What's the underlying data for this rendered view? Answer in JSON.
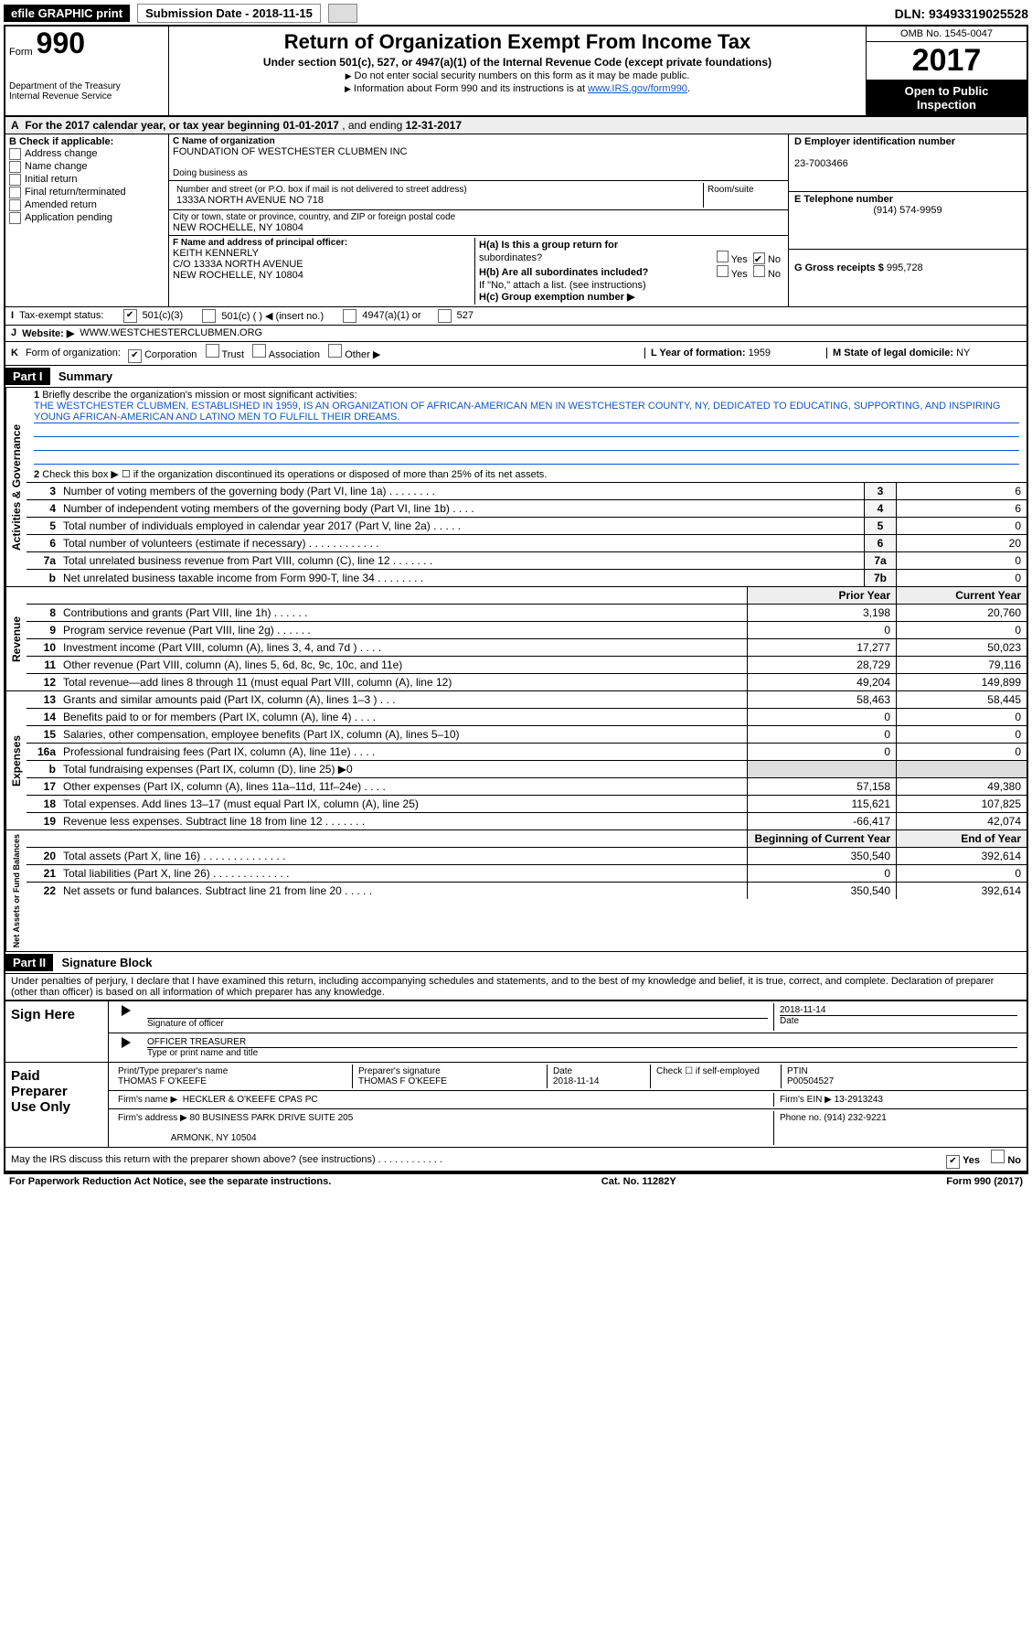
{
  "topbar": {
    "efile": "efile GRAPHIC print",
    "submission_label": "Submission Date - 2018-11-15",
    "dln": "DLN: 93493319025528"
  },
  "header": {
    "form_label": "Form",
    "form_number": "990",
    "dept1": "Department of the Treasury",
    "dept2": "Internal Revenue Service",
    "title": "Return of Organization Exempt From Income Tax",
    "subtitle": "Under section 501(c), 527, or 4947(a)(1) of the Internal Revenue Code (except private foundations)",
    "instr1": "Do not enter social security numbers on this form as it may be made public.",
    "instr2_pre": "Information about Form 990 and its instructions is at ",
    "instr2_link": "www.IRS.gov/form990",
    "omb": "OMB No. 1545-0047",
    "year": "2017",
    "open1": "Open to Public",
    "open2": "Inspection"
  },
  "rowA": {
    "text_pre": "For the 2017 calendar year, or tax year beginning ",
    "begin": "01-01-2017",
    "mid": " , and ending ",
    "end": "12-31-2017",
    "label": "A"
  },
  "checkB": {
    "label": "B Check if applicable:",
    "items": [
      "Address change",
      "Name change",
      "Initial return",
      "Final return/terminated",
      "Amended return",
      "Application pending"
    ]
  },
  "orgC": {
    "name_label": "C Name of organization",
    "name": "FOUNDATION OF WESTCHESTER CLUBMEN INC",
    "dba_label": "Doing business as",
    "addr_label": "Number and street (or P.O. box if mail is not delivered to street address)",
    "room_label": "Room/suite",
    "addr": "1333A NORTH AVENUE NO 718",
    "city_label": "City or town, state or province, country, and ZIP or foreign postal code",
    "city": "NEW ROCHELLE, NY  10804",
    "f_label": "F Name and address of principal officer:",
    "f_name": "KEITH KENNERLY",
    "f_addr1": "C/O 1333A NORTH AVENUE",
    "f_addr2": "NEW ROCHELLE, NY  10804"
  },
  "colD": {
    "ein_label": "D Employer identification number",
    "ein": "23-7003466",
    "phone_label": "E Telephone number",
    "phone": "(914) 574-9959",
    "gross_label": "G Gross receipts $ ",
    "gross": "995,728"
  },
  "colH": {
    "ha_label": "H(a) Is this a group return for",
    "ha_sub": "subordinates?",
    "hb_label": "H(b) Are all subordinates included?",
    "hb_note": "If \"No,\" attach a list. (see instructions)",
    "hc_label": "H(c) Group exemption number ▶",
    "yes": "Yes",
    "no": "No"
  },
  "lineI": {
    "label": "I",
    "text": "Tax-exempt status:",
    "opt1": "501(c)(3)",
    "opt2": "501(c) (  ) ◀ (insert no.)",
    "opt3": "4947(a)(1) or",
    "opt4": "527"
  },
  "lineJ": {
    "label": "J",
    "text": "Website: ▶",
    "value": "WWW.WESTCHESTERCLUBMEN.ORG"
  },
  "lineK": {
    "label": "K",
    "text": "Form of organization:",
    "opts": [
      "Corporation",
      "Trust",
      "Association",
      "Other ▶"
    ],
    "l_label": "L Year of formation: ",
    "l_val": "1959",
    "m_label": "M State of legal domicile: ",
    "m_val": "NY"
  },
  "part1": {
    "header": "Part I",
    "title": "Summary"
  },
  "summary": {
    "vtab_gov": "Activities & Governance",
    "vtab_rev": "Revenue",
    "vtab_exp": "Expenses",
    "vtab_net": "Net Assets or Fund Balances",
    "line1_num": "1",
    "line1": "Briefly describe the organization's mission or most significant activities:",
    "mission": "THE WESTCHESTER CLUBMEN, ESTABLISHED IN 1959, IS AN ORGANIZATION OF AFRICAN-AMERICAN MEN IN WESTCHESTER COUNTY, NY, DEDICATED TO EDUCATING, SUPPORTING, AND INSPIRING YOUNG AFRICAN-AMERICAN AND LATINO MEN TO FULFILL THEIR DREAMS.",
    "line2_num": "2",
    "line2": "Check this box ▶ ☐ if the organization discontinued its operations or disposed of more than 25% of its net assets.",
    "rows_gov": [
      {
        "num": "3",
        "desc": "Number of voting members of the governing body (Part VI, line 1a)  .   .   .   .   .   .   .   .",
        "box": "3",
        "val": "6"
      },
      {
        "num": "4",
        "desc": "Number of independent voting members of the governing body (Part VI, line 1b)  .   .   .   .",
        "box": "4",
        "val": "6"
      },
      {
        "num": "5",
        "desc": "Total number of individuals employed in calendar year 2017 (Part V, line 2a)  .   .   .   .   .",
        "box": "5",
        "val": "0"
      },
      {
        "num": "6",
        "desc": "Total number of volunteers (estimate if necessary)  .   .   .   .   .   .   .   .   .   .   .   .",
        "box": "6",
        "val": "20"
      },
      {
        "num": "7a",
        "desc": "Total unrelated business revenue from Part VIII, column (C), line 12  .   .   .   .   .   .   .",
        "box": "7a",
        "val": "0"
      },
      {
        "num": "b",
        "desc": "Net unrelated business taxable income from Form 990-T, line 34  .   .   .   .   .   .   .   .",
        "box": "7b",
        "val": "0"
      }
    ],
    "prior_year": "Prior Year",
    "current_year": "Current Year",
    "rows_rev": [
      {
        "num": "8",
        "desc": "Contributions and grants (Part VIII, line 1h)  .   .   .   .   .   .",
        "py": "3,198",
        "cy": "20,760"
      },
      {
        "num": "9",
        "desc": "Program service revenue (Part VIII, line 2g)  .   .   .   .   .   .",
        "py": "0",
        "cy": "0"
      },
      {
        "num": "10",
        "desc": "Investment income (Part VIII, column (A), lines 3, 4, and 7d )  .   .   .   .",
        "py": "17,277",
        "cy": "50,023"
      },
      {
        "num": "11",
        "desc": "Other revenue (Part VIII, column (A), lines 5, 6d, 8c, 9c, 10c, and 11e)",
        "py": "28,729",
        "cy": "79,116"
      },
      {
        "num": "12",
        "desc": "Total revenue—add lines 8 through 11 (must equal Part VIII, column (A), line 12)",
        "py": "49,204",
        "cy": "149,899"
      }
    ],
    "rows_exp": [
      {
        "num": "13",
        "desc": "Grants and similar amounts paid (Part IX, column (A), lines 1–3 )  .   .   .",
        "py": "58,463",
        "cy": "58,445"
      },
      {
        "num": "14",
        "desc": "Benefits paid to or for members (Part IX, column (A), line 4)  .   .   .   .",
        "py": "0",
        "cy": "0"
      },
      {
        "num": "15",
        "desc": "Salaries, other compensation, employee benefits (Part IX, column (A), lines 5–10)",
        "py": "0",
        "cy": "0"
      },
      {
        "num": "16a",
        "desc": "Professional fundraising fees (Part IX, column (A), line 11e)  .   .   .   .",
        "py": "0",
        "cy": "0"
      },
      {
        "num": "b",
        "desc": "Total fundraising expenses (Part IX, column (D), line 25) ▶0",
        "py": "",
        "cy": "",
        "shade": true
      },
      {
        "num": "17",
        "desc": "Other expenses (Part IX, column (A), lines 11a–11d, 11f–24e)  .   .   .   .",
        "py": "57,158",
        "cy": "49,380"
      },
      {
        "num": "18",
        "desc": "Total expenses. Add lines 13–17 (must equal Part IX, column (A), line 25)",
        "py": "115,621",
        "cy": "107,825"
      },
      {
        "num": "19",
        "desc": "Revenue less expenses. Subtract line 18 from line 12  .   .   .   .   .   .   .",
        "py": "-66,417",
        "cy": "42,074"
      }
    ],
    "boy": "Beginning of Current Year",
    "eoy": "End of Year",
    "rows_net": [
      {
        "num": "20",
        "desc": "Total assets (Part X, line 16)  .   .   .   .   .   .   .   .   .   .   .   .   .   .",
        "py": "350,540",
        "cy": "392,614"
      },
      {
        "num": "21",
        "desc": "Total liabilities (Part X, line 26)  .   .   .   .   .   .   .   .   .   .   .   .   .",
        "py": "0",
        "cy": "0"
      },
      {
        "num": "22",
        "desc": "Net assets or fund balances. Subtract line 21 from line 20  .   .   .   .   .",
        "py": "350,540",
        "cy": "392,614"
      }
    ]
  },
  "part2": {
    "header": "Part II",
    "title": "Signature Block",
    "penalty": "Under penalties of perjury, I declare that I have examined this return, including accompanying schedules and statements, and to the best of my knowledge and belief, it is true, correct, and complete. Declaration of preparer (other than officer) is based on all information of which preparer has any knowledge."
  },
  "sign": {
    "left": "Sign Here",
    "sig_label": "Signature of officer",
    "date_label": "Date",
    "date": "2018-11-14",
    "title_line": "OFFICER TREASURER",
    "title_label": "Type or print name and title"
  },
  "paid": {
    "left1": "Paid",
    "left2": "Preparer",
    "left3": "Use Only",
    "r1c1_label": "Print/Type preparer's name",
    "r1c1": "THOMAS F O'KEEFE",
    "r1c2_label": "Preparer's signature",
    "r1c2": "THOMAS F O'KEEFE",
    "r1c3_label": "Date",
    "r1c3": "2018-11-14",
    "r1c4_label": "Check ☐ if self-employed",
    "r1c5_label": "PTIN",
    "r1c5": "P00504527",
    "r2_label": "Firm's name    ▶",
    "r2": "HECKLER & O'KEEFE CPAS PC",
    "r2b_label": "Firm's EIN ▶",
    "r2b": "13-2913243",
    "r3_label": "Firm's address ▶",
    "r3a": "80 BUSINESS PARK DRIVE SUITE 205",
    "r3b": "ARMONK, NY  10504",
    "r3c_label": "Phone no. ",
    "r3c": "(914) 232-9221"
  },
  "discuss": {
    "text": "May the IRS discuss this return with the preparer shown above? (see instructions)  .   .   .   .   .   .   .   .   .   .   .   .",
    "yes": "Yes",
    "no": "No"
  },
  "footer": {
    "left": "For Paperwork Reduction Act Notice, see the separate instructions.",
    "mid": "Cat. No. 11282Y",
    "right": "Form 990 (2017)"
  }
}
